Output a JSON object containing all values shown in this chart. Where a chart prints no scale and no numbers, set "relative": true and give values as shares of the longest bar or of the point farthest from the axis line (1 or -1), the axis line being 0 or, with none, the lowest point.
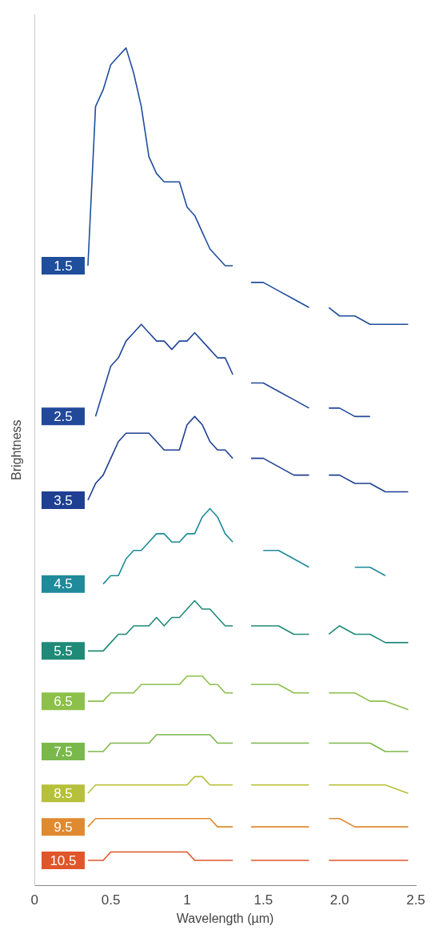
{
  "chart_data": {
    "type": "line",
    "relative": true,
    "xlabel": "Wavelength (µm)",
    "ylabel": "Brightness",
    "xlim": [
      0,
      2.5
    ],
    "xticks": [
      0,
      0.5,
      1,
      1.5,
      {
        "value": 2,
        "label": "2.0"
      },
      2.5
    ],
    "grid": false,
    "legend": false,
    "marker": "none",
    "line_style": "solid",
    "x": [
      0.35,
      0.4,
      0.45,
      0.5,
      0.55,
      0.6,
      0.65,
      0.7,
      0.75,
      0.8,
      0.85,
      0.9,
      0.95,
      1.0,
      1.05,
      1.1,
      1.15,
      1.2,
      1.25,
      1.3,
      1.38,
      1.42,
      1.5,
      1.6,
      1.7,
      1.8,
      1.87,
      1.93,
      2.0,
      2.1,
      2.2,
      2.3,
      2.45
    ],
    "series": [
      {
        "name": "1.5",
        "color": "#1f4e9c",
        "values": [
          0.74,
          0.93,
          0.95,
          0.98,
          0.99,
          1.0,
          0.97,
          0.93,
          0.87,
          0.85,
          0.84,
          0.84,
          0.84,
          0.81,
          0.8,
          0.78,
          0.76,
          0.75,
          0.74,
          0.74,
          null,
          0.72,
          0.72,
          0.71,
          0.7,
          0.69,
          null,
          0.69,
          0.68,
          0.68,
          0.67,
          0.67,
          0.67
        ]
      },
      {
        "name": "2.5",
        "color": "#22489a",
        "values": [
          null,
          0.56,
          0.59,
          0.62,
          0.63,
          0.65,
          0.66,
          0.67,
          0.66,
          0.65,
          0.65,
          0.64,
          0.65,
          0.65,
          0.66,
          0.65,
          0.64,
          0.63,
          0.63,
          0.61,
          null,
          0.6,
          0.6,
          0.59,
          0.58,
          0.57,
          null,
          0.57,
          0.57,
          0.56,
          0.56,
          null,
          null
        ]
      },
      {
        "name": "3.5",
        "color": "#1f3f93",
        "values": [
          0.46,
          0.48,
          0.49,
          0.51,
          0.53,
          0.54,
          0.54,
          0.54,
          0.54,
          0.53,
          0.52,
          0.52,
          0.52,
          0.55,
          0.56,
          0.55,
          0.53,
          0.52,
          0.52,
          0.51,
          null,
          0.51,
          0.51,
          0.5,
          0.49,
          0.49,
          null,
          0.49,
          0.49,
          0.48,
          0.48,
          0.47,
          0.47
        ]
      },
      {
        "name": "4.5",
        "color": "#1f8a9a",
        "values": [
          null,
          null,
          0.36,
          0.37,
          0.37,
          0.39,
          0.4,
          0.4,
          0.41,
          0.42,
          0.42,
          0.41,
          0.41,
          0.42,
          0.42,
          0.44,
          0.45,
          0.44,
          0.42,
          0.41,
          null,
          null,
          0.4,
          0.4,
          0.39,
          0.38,
          null,
          null,
          null,
          0.38,
          0.38,
          0.37,
          null
        ]
      },
      {
        "name": "5.5",
        "color": "#1f8a78",
        "values": [
          0.28,
          0.28,
          0.28,
          0.29,
          0.3,
          0.3,
          0.31,
          0.31,
          0.31,
          0.32,
          0.31,
          0.32,
          0.32,
          0.33,
          0.34,
          0.33,
          0.33,
          0.32,
          0.31,
          0.31,
          null,
          0.31,
          0.31,
          0.31,
          0.3,
          0.3,
          null,
          0.3,
          0.31,
          0.3,
          0.3,
          0.29,
          0.29
        ]
      },
      {
        "name": "6.5",
        "color": "#8cc04a",
        "values": [
          0.22,
          0.22,
          0.22,
          0.23,
          0.23,
          0.23,
          0.23,
          0.24,
          0.24,
          0.24,
          0.24,
          0.24,
          0.24,
          0.25,
          0.25,
          0.25,
          0.24,
          0.24,
          0.23,
          0.23,
          null,
          0.24,
          0.24,
          0.24,
          0.23,
          0.23,
          null,
          0.23,
          0.23,
          0.23,
          0.22,
          0.22,
          0.21
        ]
      },
      {
        "name": "7.5",
        "color": "#7ab84c",
        "values": [
          0.16,
          0.16,
          0.16,
          0.17,
          0.17,
          0.17,
          0.17,
          0.17,
          0.17,
          0.18,
          0.18,
          0.18,
          0.18,
          0.18,
          0.18,
          0.18,
          0.18,
          0.17,
          0.17,
          0.17,
          null,
          0.17,
          0.17,
          0.17,
          0.17,
          0.17,
          null,
          0.17,
          0.17,
          0.17,
          0.17,
          0.16,
          0.16
        ]
      },
      {
        "name": "8.5",
        "color": "#b7c03a",
        "values": [
          0.11,
          0.12,
          0.12,
          0.12,
          0.12,
          0.12,
          0.12,
          0.12,
          0.12,
          0.12,
          0.12,
          0.12,
          0.12,
          0.12,
          0.13,
          0.13,
          0.12,
          0.12,
          0.12,
          0.12,
          null,
          0.12,
          0.12,
          0.12,
          0.12,
          0.12,
          null,
          0.12,
          0.12,
          0.12,
          0.12,
          0.12,
          0.11
        ]
      },
      {
        "name": "9.5",
        "color": "#e08a30",
        "values": [
          0.07,
          0.08,
          0.08,
          0.08,
          0.08,
          0.08,
          0.08,
          0.08,
          0.08,
          0.08,
          0.08,
          0.08,
          0.08,
          0.08,
          0.08,
          0.08,
          0.08,
          0.07,
          0.07,
          0.07,
          null,
          0.07,
          0.07,
          0.07,
          0.07,
          0.07,
          null,
          0.08,
          0.08,
          0.07,
          0.07,
          0.07,
          0.07
        ]
      },
      {
        "name": "10.5",
        "color": "#e0552a",
        "values": [
          0.03,
          0.03,
          0.03,
          0.04,
          0.04,
          0.04,
          0.04,
          0.04,
          0.04,
          0.04,
          0.04,
          0.04,
          0.04,
          0.04,
          0.03,
          0.03,
          0.03,
          0.03,
          0.03,
          0.03,
          null,
          0.03,
          0.03,
          0.03,
          0.03,
          0.03,
          null,
          0.03,
          0.03,
          0.03,
          0.03,
          0.03,
          0.03
        ]
      }
    ]
  }
}
